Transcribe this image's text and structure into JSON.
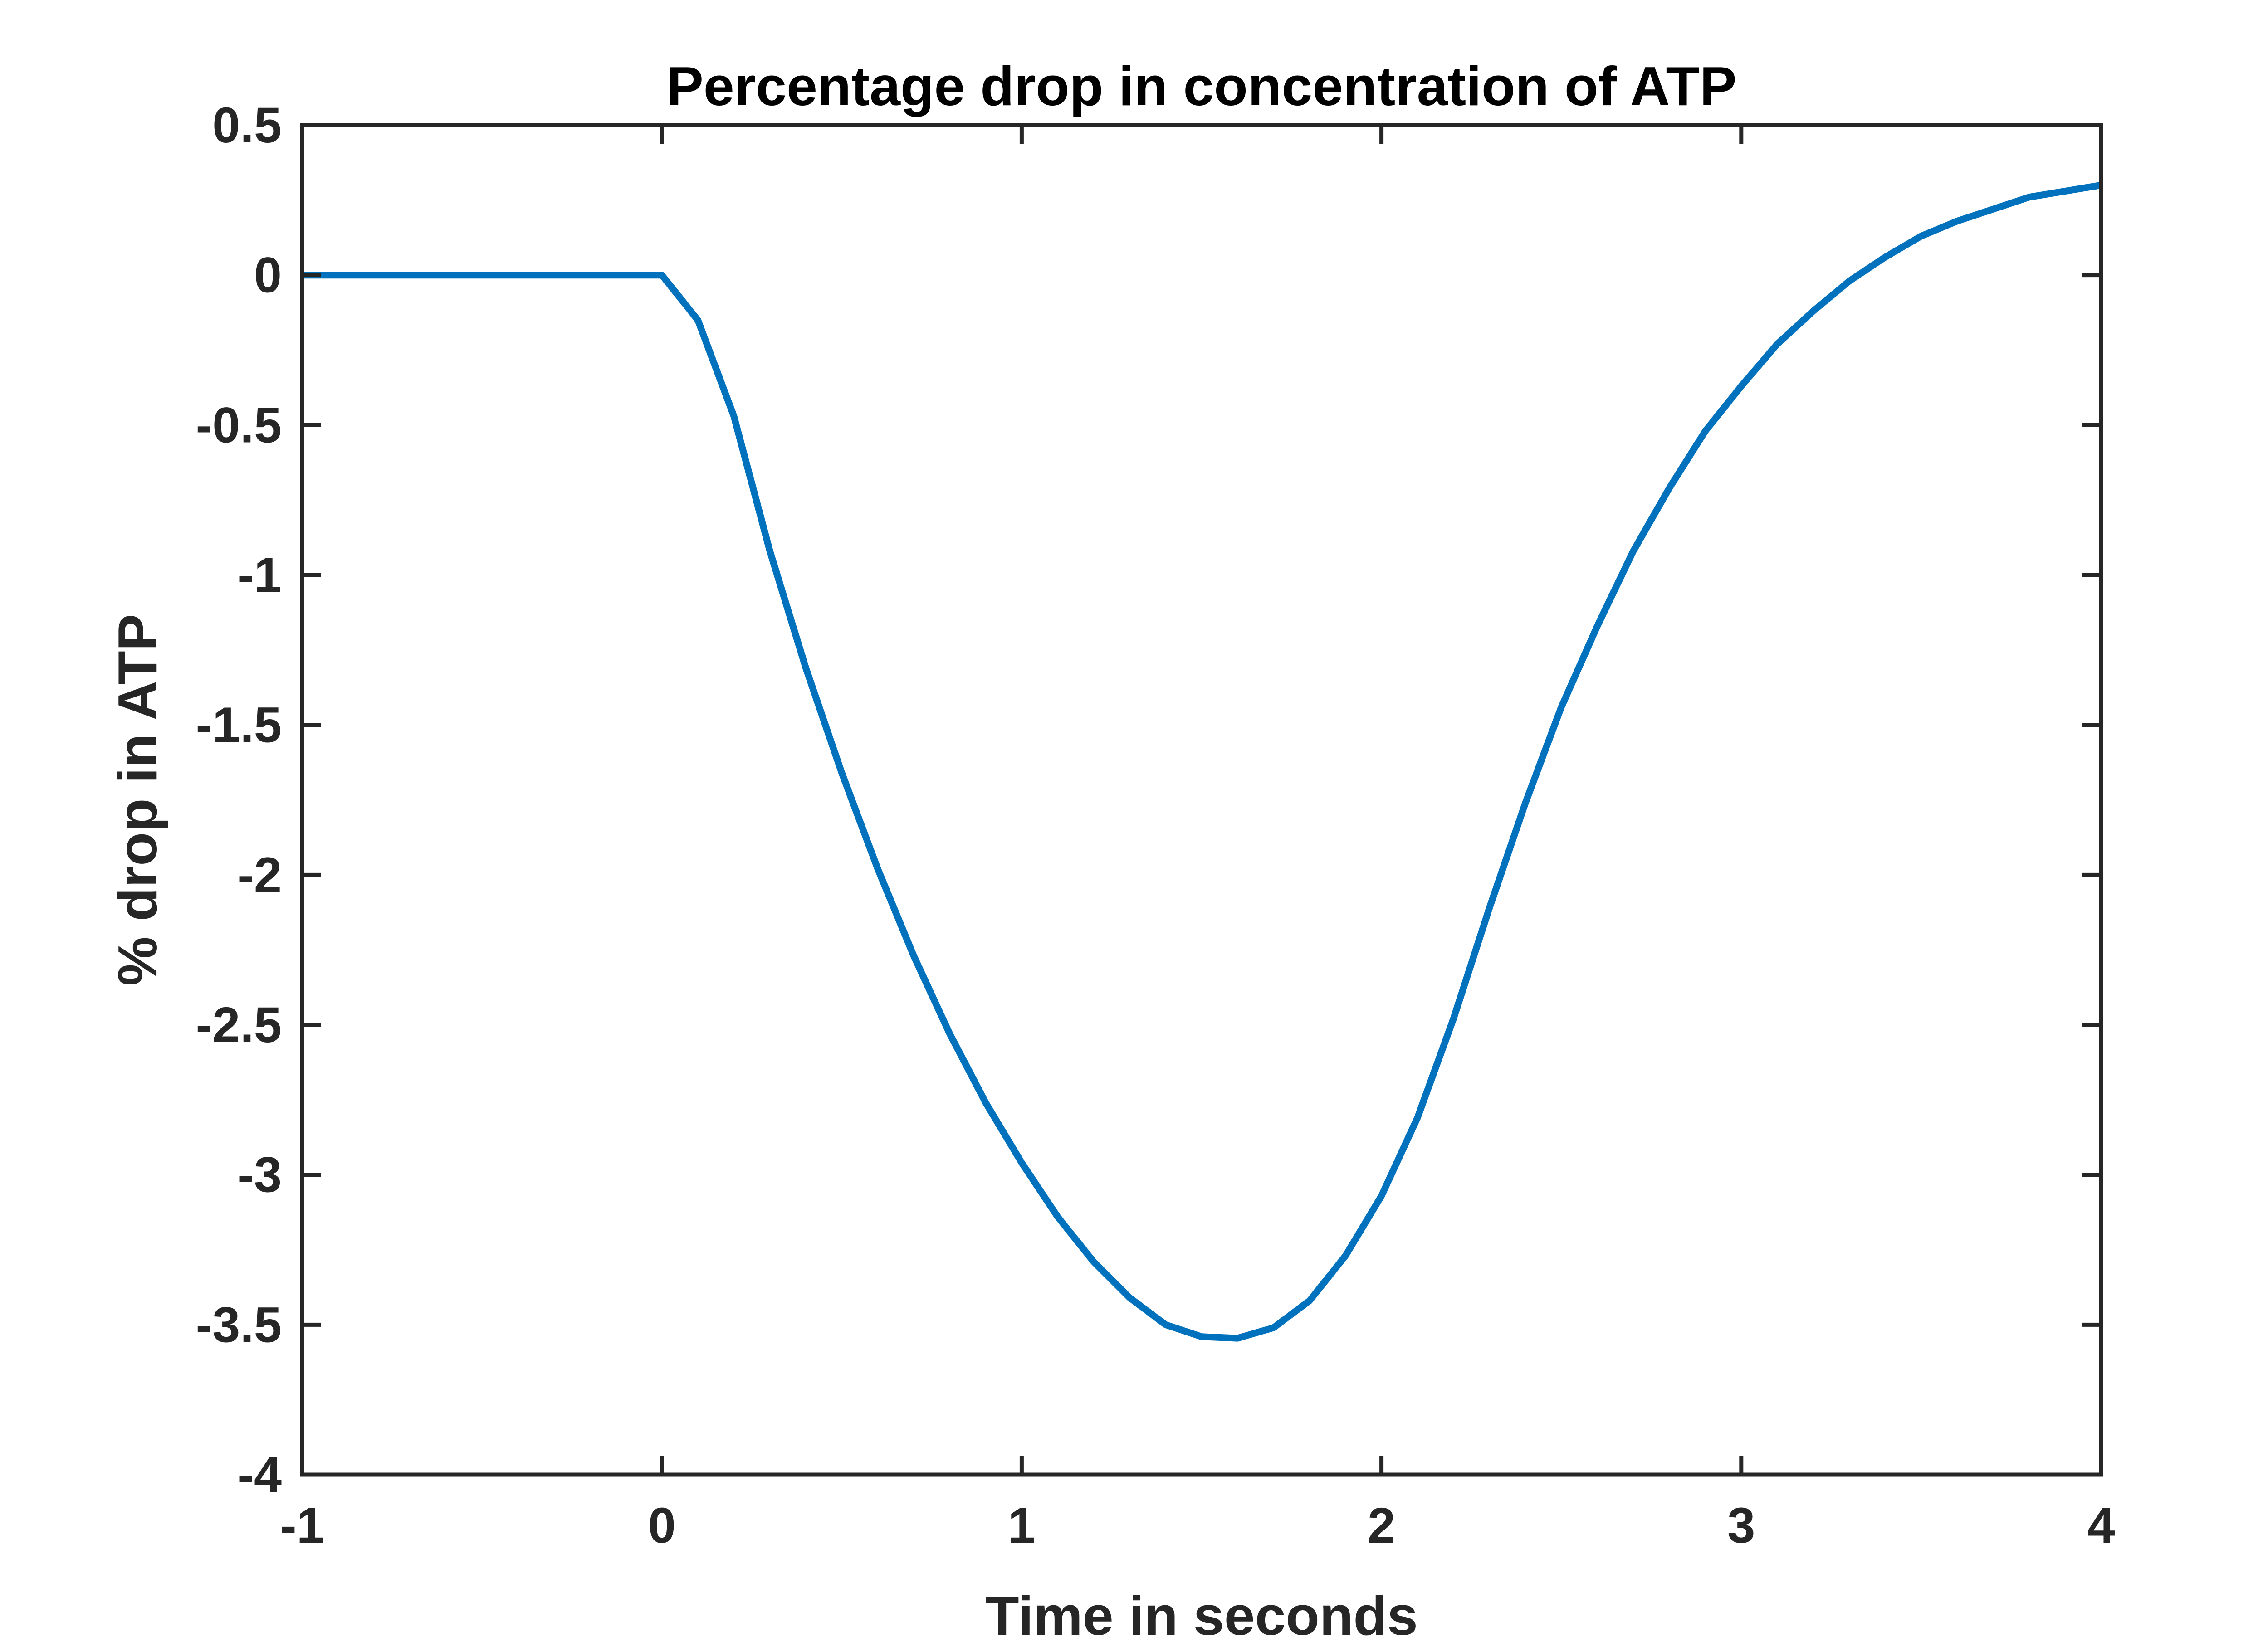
{
  "chart_data": {
    "type": "line",
    "title": "Percentage drop in concentration of ATP",
    "xlabel": "Time in seconds",
    "ylabel": "% drop in ATP",
    "xlim": [
      -1,
      4
    ],
    "ylim": [
      -4,
      0.5
    ],
    "xticks": [
      -1,
      0,
      1,
      2,
      3,
      4
    ],
    "xtick_labels": [
      "-1",
      "0",
      "1",
      "2",
      "3",
      "4"
    ],
    "yticks": [
      0.5,
      0,
      -0.5,
      -1,
      -1.5,
      -2,
      -2.5,
      -3,
      -3.5,
      -4
    ],
    "ytick_labels": [
      "0.5",
      "0",
      "-0.5",
      "-1",
      "-1.5",
      "-2",
      "-2.5",
      "-3",
      "-3.5",
      "-4"
    ],
    "grid": false,
    "legend": "none",
    "series": [
      {
        "color": "#0072BD",
        "x": [
          -1,
          0,
          0.1,
          0.2,
          0.3,
          0.4,
          0.5,
          0.6,
          0.7,
          0.8,
          0.9,
          1.0,
          1.1,
          1.2,
          1.3,
          1.4,
          1.5,
          1.6,
          1.7,
          1.8,
          1.9,
          2.0,
          2.1,
          2.2,
          2.3,
          2.4,
          2.5,
          2.6,
          2.7,
          2.8,
          2.9,
          3.0,
          3.1,
          3.2,
          3.3,
          3.4,
          3.5,
          3.6,
          3.7,
          3.8,
          3.9,
          4.0
        ],
        "y": [
          0,
          0,
          -0.15,
          -0.47,
          -0.92,
          -1.31,
          -1.66,
          -1.98,
          -2.27,
          -2.53,
          -2.76,
          -2.96,
          -3.14,
          -3.29,
          -3.41,
          -3.5,
          -3.54,
          -3.545,
          -3.51,
          -3.42,
          -3.27,
          -3.07,
          -2.81,
          -2.48,
          -2.11,
          -1.76,
          -1.44,
          -1.17,
          -0.92,
          -0.71,
          -0.52,
          -0.37,
          -0.23,
          -0.12,
          -0.02,
          0.06,
          0.13,
          0.18,
          0.22,
          0.26,
          0.28,
          0.3
        ]
      }
    ]
  }
}
